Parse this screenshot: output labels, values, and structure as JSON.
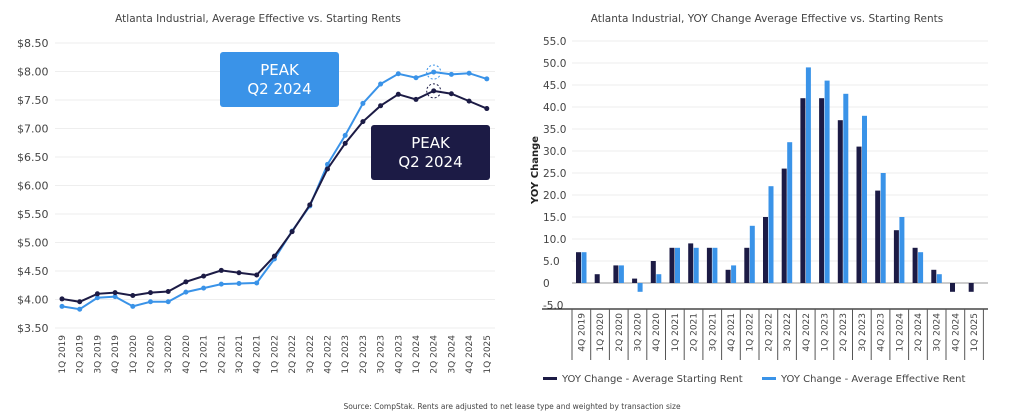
{
  "colors": {
    "starting": "#1c1b45",
    "effective": "#3a93e8"
  },
  "source": "Source: CompStak. Rents are adjusted to net lease type and weighted by transaction size",
  "chart_data": [
    {
      "type": "line",
      "title": "Atlanta Industrial, Average Effective vs. Starting Rents",
      "ylim": [
        3.5,
        8.5
      ],
      "yticks": [
        "$3.50",
        "$4.00",
        "$4.50",
        "$5.00",
        "$5.50",
        "$6.00",
        "$6.50",
        "$7.00",
        "$7.50",
        "$8.00",
        "$8.50"
      ],
      "categories": [
        "1Q 2019",
        "2Q 2019",
        "3Q 2019",
        "4Q 2019",
        "1Q 2020",
        "2Q 2020",
        "3Q 2020",
        "4Q 2020",
        "1Q 2021",
        "2Q 2021",
        "3Q 2021",
        "4Q 2021",
        "1Q 2022",
        "2Q 2022",
        "3Q 2022",
        "4Q 2022",
        "1Q 2023",
        "2Q 2023",
        "3Q 2023",
        "4Q 2023",
        "1Q 2024",
        "2Q 2024",
        "3Q 2024",
        "4Q 2024",
        "1Q 2025"
      ],
      "series": [
        {
          "key": "starting",
          "values": [
            4.01,
            3.96,
            4.1,
            4.12,
            4.07,
            4.12,
            4.14,
            4.31,
            4.41,
            4.51,
            4.47,
            4.43,
            4.76,
            5.19,
            5.66,
            6.29,
            6.74,
            7.12,
            7.4,
            7.6,
            7.51,
            7.66,
            7.61,
            7.48,
            7.35
          ]
        },
        {
          "key": "effective",
          "values": [
            3.88,
            3.83,
            4.03,
            4.05,
            3.88,
            3.96,
            3.96,
            4.13,
            4.2,
            4.27,
            4.28,
            4.29,
            4.71,
            5.2,
            5.64,
            6.37,
            6.88,
            7.44,
            7.78,
            7.96,
            7.89,
            7.99,
            7.95,
            7.97,
            7.87
          ]
        }
      ],
      "annotations": [
        {
          "text1": "PEAK",
          "text2": "Q2 2024",
          "series": "effective"
        },
        {
          "text1": "PEAK",
          "text2": "Q2 2024",
          "series": "starting"
        }
      ]
    },
    {
      "type": "bar",
      "title": "Atlanta Industrial, YOY Change Average Effective vs. Starting Rents",
      "ylabel": "YOY Change",
      "ylim": [
        -5,
        55
      ],
      "yticks": [
        "-5.0",
        "0",
        "5.0",
        "10.0",
        "15.0",
        "20.0",
        "25.0",
        "30.0",
        "35.0",
        "40.0",
        "45.0",
        "50.0",
        "55.0"
      ],
      "categories": [
        "4Q 2019",
        "1Q 2020",
        "2Q 2020",
        "3Q 2020",
        "4Q 2020",
        "1Q 2021",
        "2Q 2021",
        "3Q 2021",
        "4Q 2021",
        "1Q 2022",
        "2Q 2022",
        "3Q 2022",
        "4Q 2022",
        "1Q 2023",
        "2Q 2023",
        "3Q 2023",
        "4Q 2023",
        "1Q 2024",
        "2Q 2024",
        "3Q 2024",
        "4Q 2024",
        "1Q 2025"
      ],
      "series": [
        {
          "name": "YOY Change - Average Starting Rent",
          "key": "starting",
          "values": [
            7,
            2,
            4,
            1,
            5,
            8,
            9,
            8,
            3,
            8,
            15,
            26,
            42,
            42,
            37,
            31,
            21,
            12,
            8,
            3,
            -2,
            -2
          ]
        },
        {
          "name": "YOY Change - Average Effective Rent",
          "key": "effective",
          "values": [
            7,
            0,
            4,
            -2,
            2,
            8,
            8,
            8,
            4,
            13,
            22,
            32,
            49,
            46,
            43,
            38,
            25,
            15,
            7,
            2,
            0,
            0
          ]
        }
      ],
      "legend": "bottom"
    }
  ]
}
